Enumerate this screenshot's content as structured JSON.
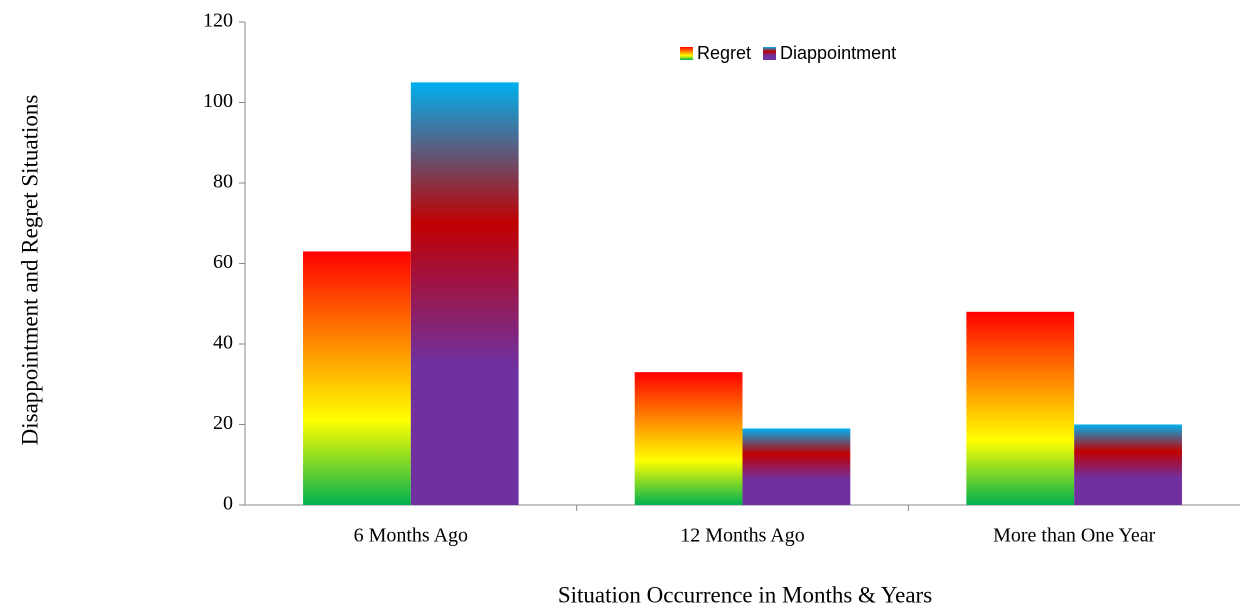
{
  "chart_data": {
    "type": "bar",
    "x_label": "Situation Occurrence in Months & Years",
    "y_label": "Disappointment and Regret Situations",
    "categories": [
      "6 Months Ago",
      "12 Months Ago",
      "More than One Year"
    ],
    "series": [
      {
        "name": "Regret",
        "color": "#ff6a00",
        "gradient": [
          "#00b050",
          "#ffff00",
          "#ff8000",
          "#ff0000"
        ],
        "values": [
          63,
          33,
          48
        ]
      },
      {
        "name": "Diappointment",
        "color": "#c00000",
        "gradient": [
          "#7030a0",
          "#7030a0",
          "#c00000",
          "#00b0f0"
        ],
        "values": [
          105,
          19,
          20
        ]
      }
    ],
    "ylim": [
      0,
      120
    ],
    "yticks": [
      0,
      20,
      40,
      60,
      80,
      100,
      120
    ],
    "grid": false,
    "legend": "top"
  }
}
